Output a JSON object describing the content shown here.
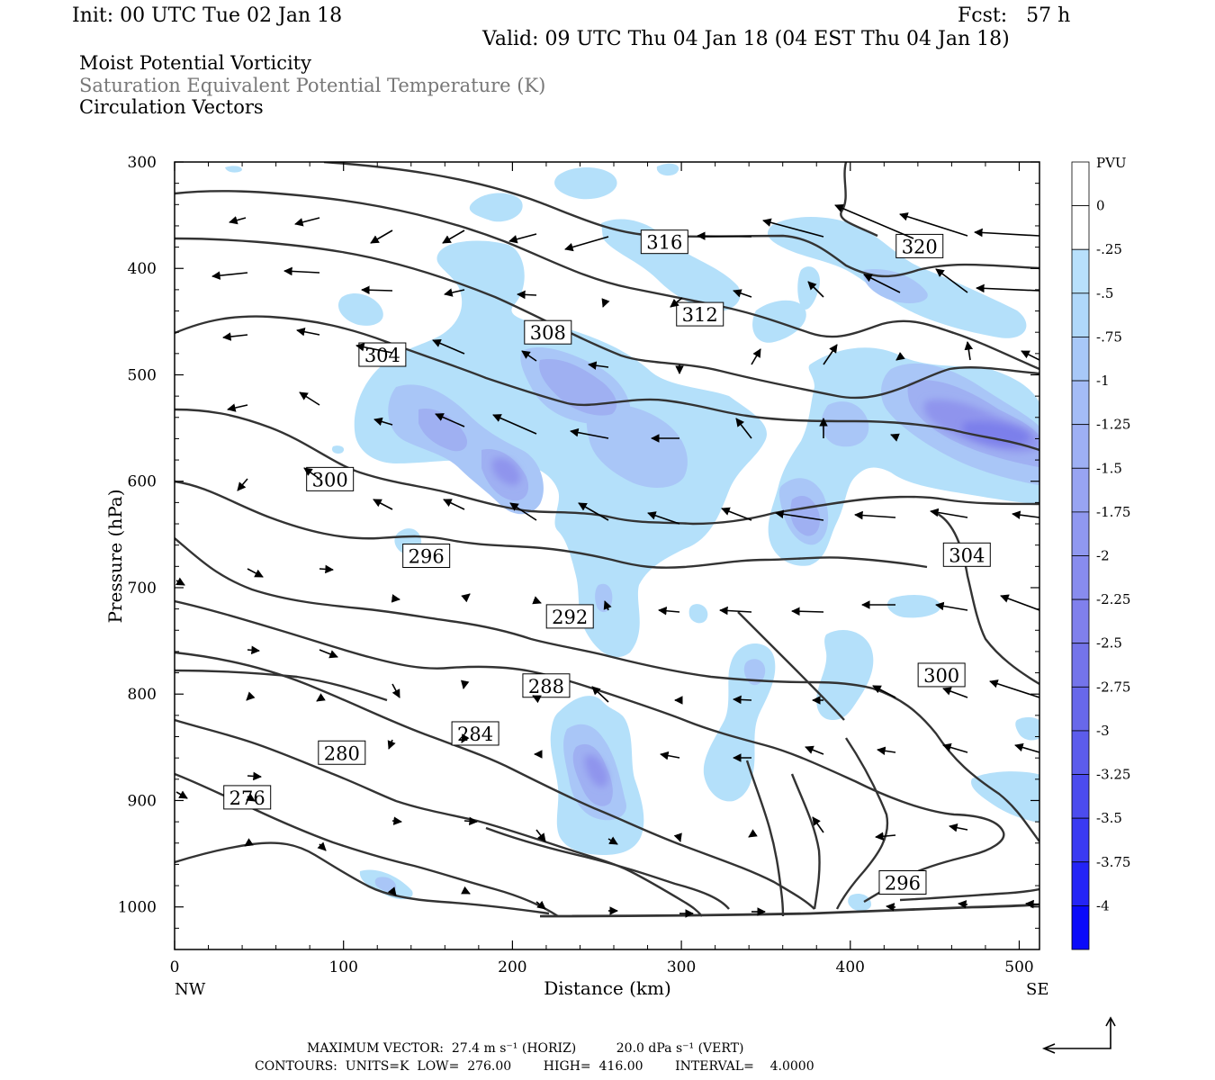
{
  "header": {
    "init": "Init: 00 UTC Tue 02 Jan 18",
    "fcst": "Fcst:   57 h",
    "valid": "Valid: 09 UTC Thu 04 Jan 18 (04 EST Thu 04 Jan 18)"
  },
  "titles": [
    "Moist Potential Vorticity",
    "Saturation Equivalent Potential Temperature (K)",
    "Circulation Vectors"
  ],
  "footer": {
    "max_vector": "MAXIMUM VECTOR:  27.4 m s⁻¹ (HORIZ)          20.0 dPa s⁻¹ (VERT)",
    "contours": "CONTOURS:  UNITS=K  LOW=  276.00        HIGH=  416.00        INTERVAL=    4.0000"
  },
  "colors": {
    "pv_fill": [
      "#ffffff",
      "#b0e0ff",
      "#a8c8f8",
      "#a0b4f4",
      "#9aa4f0",
      "#8c90ec",
      "#7e80e8"
    ],
    "contour": "#333333"
  },
  "chart_data": {
    "type": "contour",
    "xlabel": "Distance (km)",
    "ylabel": "Pressure (hPa)",
    "x_ticks": [
      0,
      100,
      200,
      300,
      400,
      500
    ],
    "y_ticks": [
      300,
      400,
      500,
      600,
      700,
      800,
      900,
      1000
    ],
    "xlim": [
      0,
      512
    ],
    "ylim": [
      1040,
      300
    ],
    "x_end_labels": [
      "NW",
      "SE"
    ],
    "colorbar": {
      "units": "PVU",
      "levels": [
        "0",
        "-.25",
        "-.5",
        "-.75",
        "-1",
        "-1.25",
        "-1.5",
        "-1.75",
        "-2",
        "-2.25",
        "-2.5",
        "-2.75",
        "-3",
        "-3.25",
        "-3.5",
        "-3.75",
        "-4"
      ]
    },
    "contour_labels": [
      {
        "value": "316",
        "x": 290,
        "p": 375
      },
      {
        "value": "320",
        "x": 441,
        "p": 379
      },
      {
        "value": "312",
        "x": 311,
        "p": 443
      },
      {
        "value": "308",
        "x": 221,
        "p": 460
      },
      {
        "value": "304",
        "x": 123,
        "p": 481
      },
      {
        "value": "300",
        "x": 92,
        "p": 598
      },
      {
        "value": "296",
        "x": 149,
        "p": 670
      },
      {
        "value": "304",
        "x": 469,
        "p": 669
      },
      {
        "value": "292",
        "x": 234,
        "p": 727
      },
      {
        "value": "300",
        "x": 454,
        "p": 782
      },
      {
        "value": "288",
        "x": 220,
        "p": 792
      },
      {
        "value": "284",
        "x": 178,
        "p": 837
      },
      {
        "value": "280",
        "x": 99,
        "p": 855
      },
      {
        "value": "276",
        "x": 43,
        "p": 897
      },
      {
        "value": "296",
        "x": 431,
        "p": 977
      }
    ],
    "contour_stats": {
      "units": "K",
      "low": 276.0,
      "high": 416.0,
      "interval": 4.0
    }
  }
}
